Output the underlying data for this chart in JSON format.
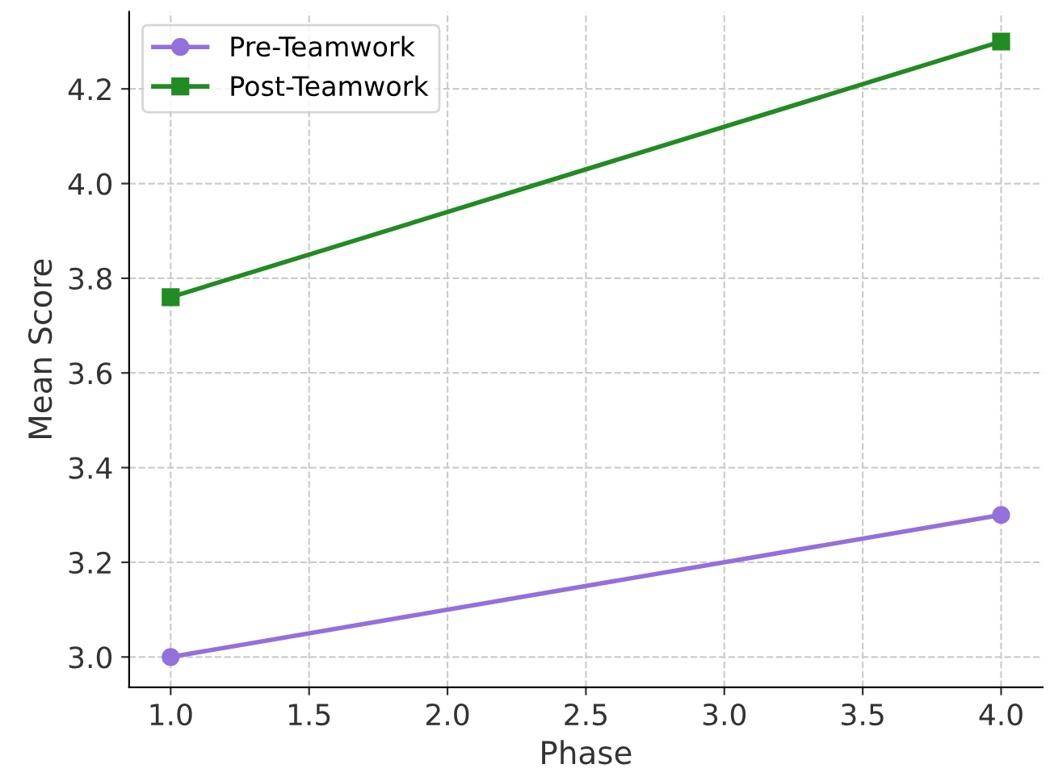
{
  "chart_data": {
    "type": "line",
    "xlabel": "Phase",
    "ylabel": "Mean Score",
    "x": [
      1.0,
      4.0
    ],
    "series": [
      {
        "name": "Pre-Teamwork",
        "color": "#9370db",
        "values": [
          3.0,
          3.3
        ],
        "marker": "circle"
      },
      {
        "name": "Post-Teamwork",
        "color": "#228b22",
        "values": [
          3.76,
          4.3
        ],
        "marker": "square"
      }
    ],
    "xlim": [
      0.85,
      4.15
    ],
    "xticks": [
      {
        "value": 1.0,
        "label": "1.0"
      },
      1.5,
      {
        "value": 2.0,
        "label": "2.0"
      },
      2.5,
      {
        "value": 3.0,
        "label": "3.0"
      },
      3.5,
      {
        "value": 4.0,
        "label": "4.0"
      }
    ],
    "ylim": [
      2.936,
      4.363
    ],
    "yticks": [
      {
        "value": 3.0,
        "label": "3.0"
      },
      3.2,
      3.4,
      3.6,
      3.8,
      {
        "value": 4.0,
        "label": "4.0"
      },
      4.2
    ],
    "grid": true,
    "legend": "top left",
    "line_style": "solid"
  }
}
